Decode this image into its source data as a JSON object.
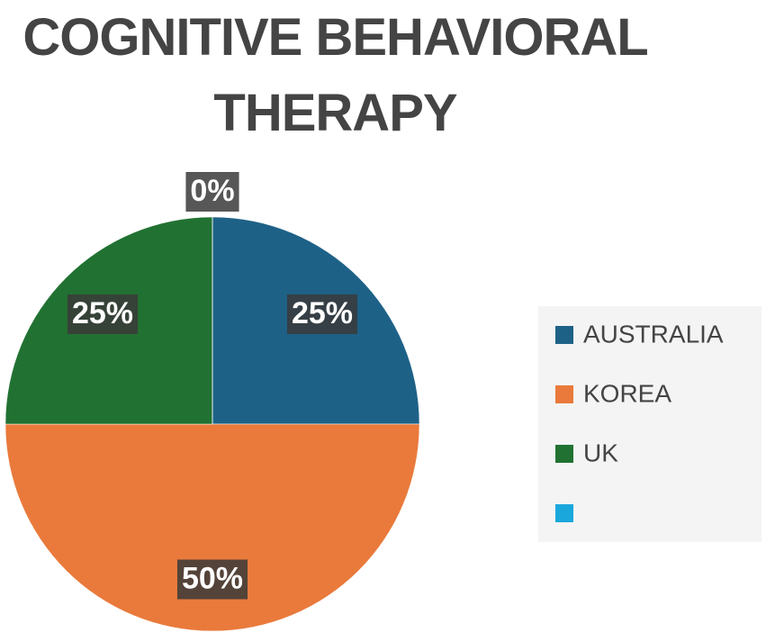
{
  "chart_data": {
    "type": "pie",
    "title": "COGNITIVE BEHAVIORAL THERAPY",
    "categories": [
      "AUSTRALIA",
      "KOREA",
      "UK",
      null
    ],
    "values": [
      25,
      50,
      25,
      0
    ],
    "value_labels": [
      "25%",
      "50%",
      "25%",
      "0%"
    ],
    "colors": [
      "#1e6187",
      "#e97a3b",
      "#217232",
      "#1aa7dc"
    ],
    "legend": "right"
  }
}
